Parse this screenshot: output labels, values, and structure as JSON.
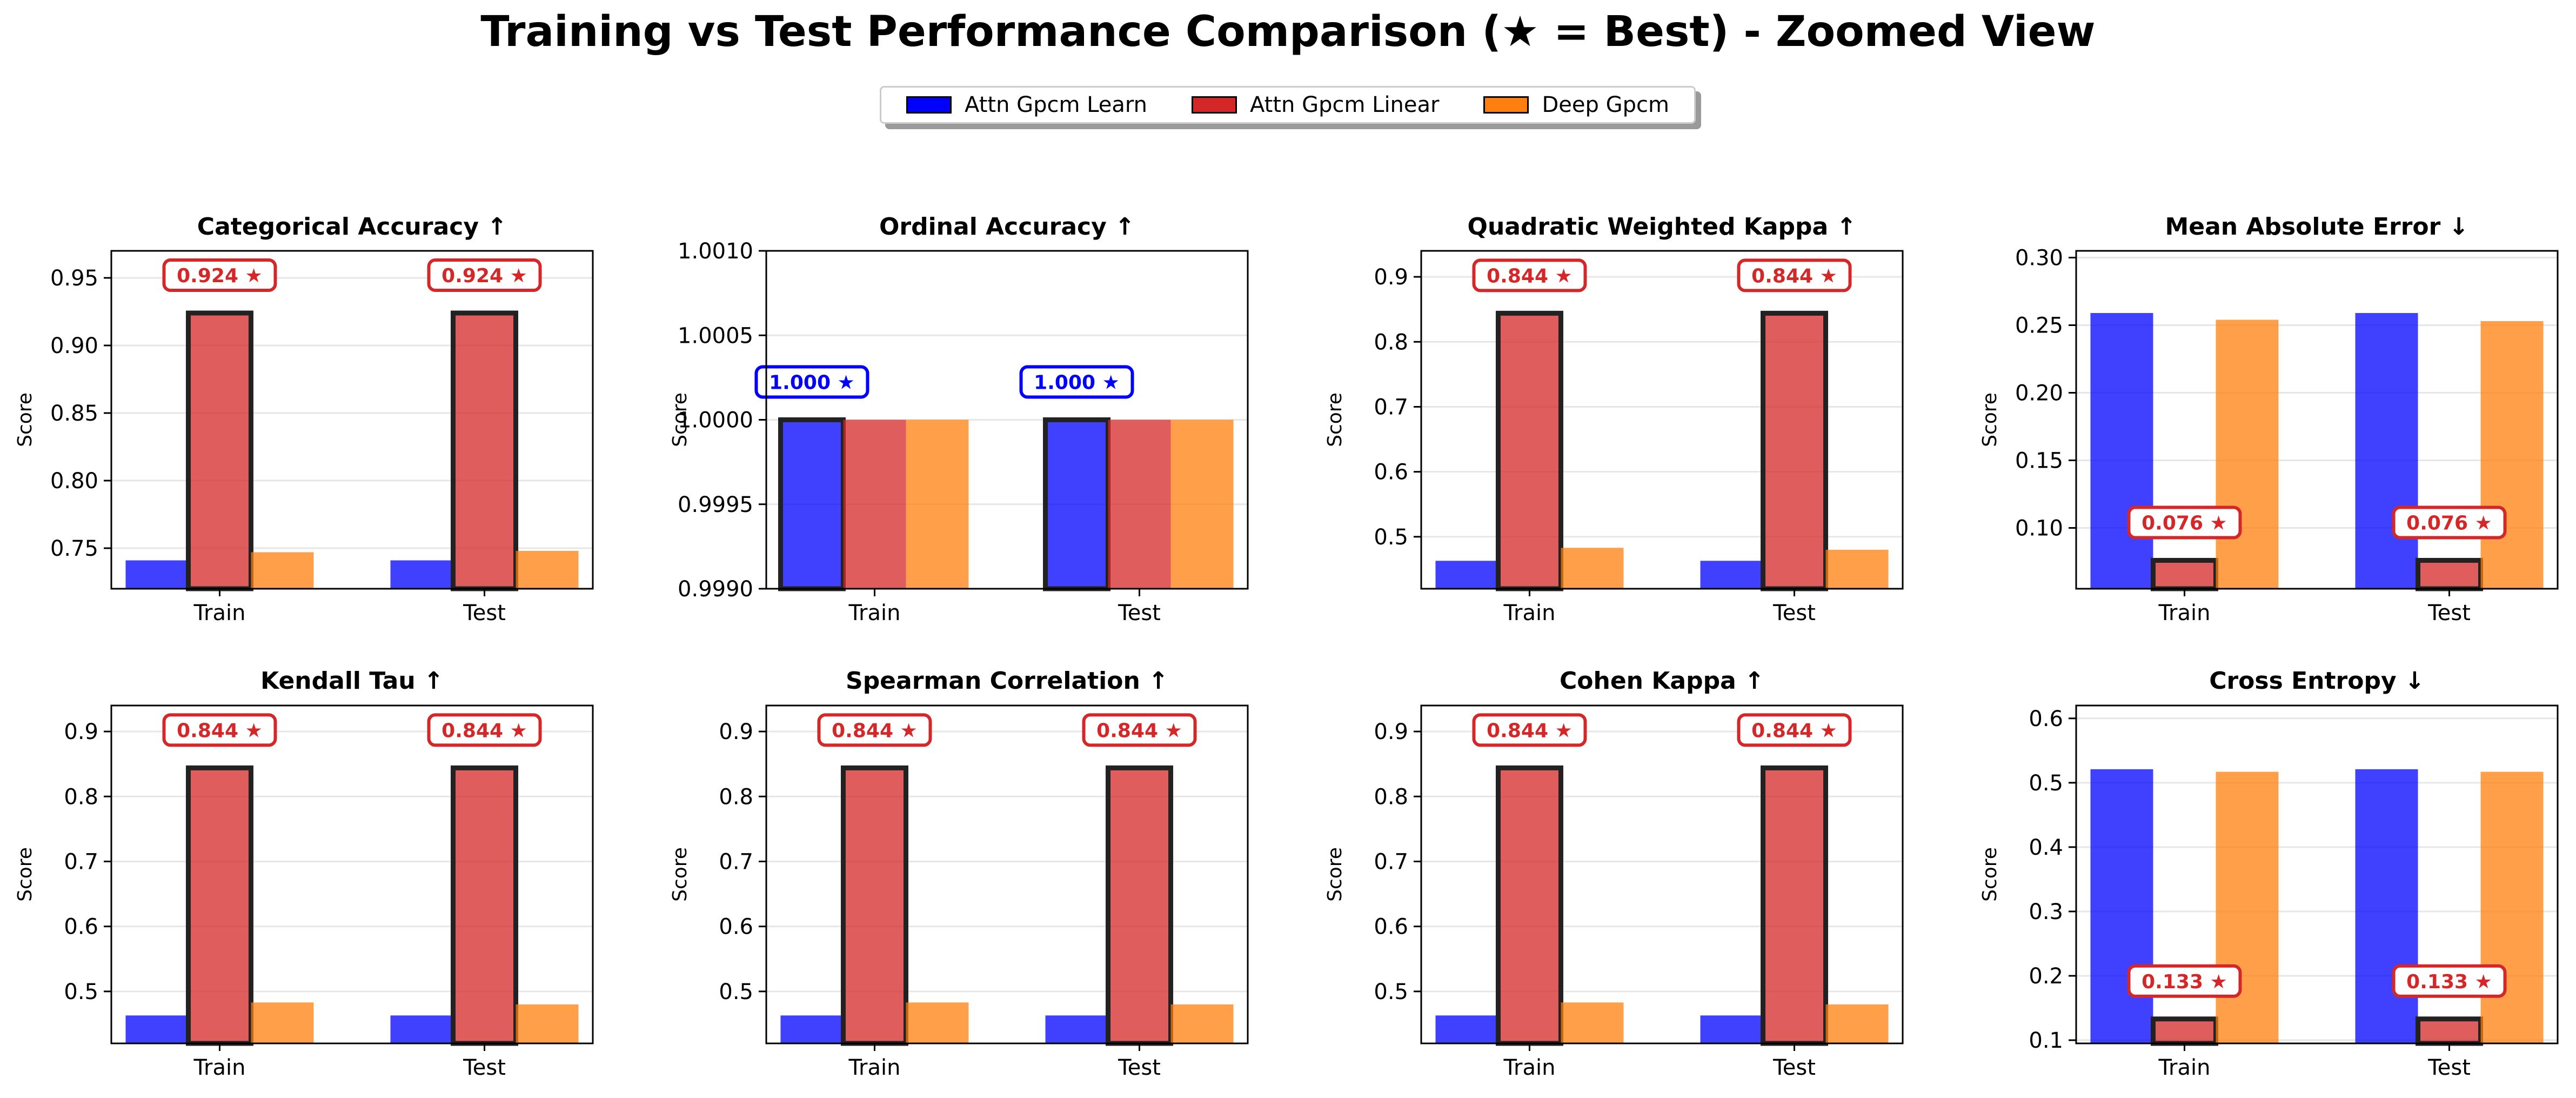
{
  "figure": {
    "title": "Training vs Test Performance Comparison (★ = Best) - Zoomed View"
  },
  "legend": {
    "items": [
      {
        "label": "Attn Gpcm Learn",
        "color": "#0000ff"
      },
      {
        "label": "Attn Gpcm Linear",
        "color": "#d62728"
      },
      {
        "label": "Deep Gpcm",
        "color": "#ff7f0e"
      }
    ]
  },
  "chart_data": [
    {
      "type": "bar",
      "title": "Categorical Accuracy ↑",
      "ylabel": "Score",
      "categories": [
        "Train",
        "Test"
      ],
      "ylim": [
        0.72,
        0.97
      ],
      "yticks": [
        0.75,
        0.8,
        0.85,
        0.9,
        0.95
      ],
      "ytick_labels": [
        "0.75",
        "0.80",
        "0.85",
        "0.90",
        "0.95"
      ],
      "series": [
        {
          "name": "Attn Gpcm Learn",
          "values": [
            0.741,
            0.741
          ]
        },
        {
          "name": "Attn Gpcm Linear",
          "values": [
            0.924,
            0.924
          ]
        },
        {
          "name": "Deep Gpcm",
          "values": [
            0.747,
            0.748
          ]
        }
      ],
      "best_series": 1,
      "best_labels": [
        "0.924 ★",
        "0.924 ★"
      ]
    },
    {
      "type": "bar",
      "title": "Ordinal Accuracy ↑",
      "ylabel": "Score",
      "categories": [
        "Train",
        "Test"
      ],
      "ylim": [
        0.999,
        1.001
      ],
      "yticks": [
        0.999,
        0.9995,
        1.0,
        1.0005,
        1.001
      ],
      "ytick_labels": [
        "0.9990",
        "0.9995",
        "1.0000",
        "1.0005",
        "1.0010"
      ],
      "series": [
        {
          "name": "Attn Gpcm Learn",
          "values": [
            1.0,
            1.0
          ]
        },
        {
          "name": "Attn Gpcm Linear",
          "values": [
            1.0,
            1.0
          ]
        },
        {
          "name": "Deep Gpcm",
          "values": [
            1.0,
            1.0
          ]
        }
      ],
      "best_series": 0,
      "best_labels": [
        "1.000 ★",
        "1.000 ★"
      ]
    },
    {
      "type": "bar",
      "title": "Quadratic Weighted Kappa ↑",
      "ylabel": "Score",
      "categories": [
        "Train",
        "Test"
      ],
      "ylim": [
        0.42,
        0.94
      ],
      "yticks": [
        0.5,
        0.6,
        0.7,
        0.8,
        0.9
      ],
      "ytick_labels": [
        "0.5",
        "0.6",
        "0.7",
        "0.8",
        "0.9"
      ],
      "series": [
        {
          "name": "Attn Gpcm Learn",
          "values": [
            0.463,
            0.463
          ]
        },
        {
          "name": "Attn Gpcm Linear",
          "values": [
            0.844,
            0.844
          ]
        },
        {
          "name": "Deep Gpcm",
          "values": [
            0.483,
            0.48
          ]
        }
      ],
      "best_series": 1,
      "best_labels": [
        "0.844 ★",
        "0.844 ★"
      ]
    },
    {
      "type": "bar",
      "title": "Mean Absolute Error ↓",
      "ylabel": "Score",
      "categories": [
        "Train",
        "Test"
      ],
      "ylim": [
        0.055,
        0.305
      ],
      "yticks": [
        0.1,
        0.15,
        0.2,
        0.25,
        0.3
      ],
      "ytick_labels": [
        "0.10",
        "0.15",
        "0.20",
        "0.25",
        "0.30"
      ],
      "series": [
        {
          "name": "Attn Gpcm Learn",
          "values": [
            0.259,
            0.259
          ]
        },
        {
          "name": "Attn Gpcm Linear",
          "values": [
            0.076,
            0.076
          ]
        },
        {
          "name": "Deep Gpcm",
          "values": [
            0.254,
            0.253
          ]
        }
      ],
      "best_series": 1,
      "best_labels": [
        "0.076 ★",
        "0.076 ★"
      ]
    },
    {
      "type": "bar",
      "title": "Kendall Tau ↑",
      "ylabel": "Score",
      "categories": [
        "Train",
        "Test"
      ],
      "ylim": [
        0.42,
        0.94
      ],
      "yticks": [
        0.5,
        0.6,
        0.7,
        0.8,
        0.9
      ],
      "ytick_labels": [
        "0.5",
        "0.6",
        "0.7",
        "0.8",
        "0.9"
      ],
      "series": [
        {
          "name": "Attn Gpcm Learn",
          "values": [
            0.463,
            0.463
          ]
        },
        {
          "name": "Attn Gpcm Linear",
          "values": [
            0.844,
            0.844
          ]
        },
        {
          "name": "Deep Gpcm",
          "values": [
            0.483,
            0.48
          ]
        }
      ],
      "best_series": 1,
      "best_labels": [
        "0.844 ★",
        "0.844 ★"
      ]
    },
    {
      "type": "bar",
      "title": "Spearman Correlation ↑",
      "ylabel": "Score",
      "categories": [
        "Train",
        "Test"
      ],
      "ylim": [
        0.42,
        0.94
      ],
      "yticks": [
        0.5,
        0.6,
        0.7,
        0.8,
        0.9
      ],
      "ytick_labels": [
        "0.5",
        "0.6",
        "0.7",
        "0.8",
        "0.9"
      ],
      "series": [
        {
          "name": "Attn Gpcm Learn",
          "values": [
            0.463,
            0.463
          ]
        },
        {
          "name": "Attn Gpcm Linear",
          "values": [
            0.844,
            0.844
          ]
        },
        {
          "name": "Deep Gpcm",
          "values": [
            0.483,
            0.48
          ]
        }
      ],
      "best_series": 1,
      "best_labels": [
        "0.844 ★",
        "0.844 ★"
      ]
    },
    {
      "type": "bar",
      "title": "Cohen Kappa ↑",
      "ylabel": "Score",
      "categories": [
        "Train",
        "Test"
      ],
      "ylim": [
        0.42,
        0.94
      ],
      "yticks": [
        0.5,
        0.6,
        0.7,
        0.8,
        0.9
      ],
      "ytick_labels": [
        "0.5",
        "0.6",
        "0.7",
        "0.8",
        "0.9"
      ],
      "series": [
        {
          "name": "Attn Gpcm Learn",
          "values": [
            0.463,
            0.463
          ]
        },
        {
          "name": "Attn Gpcm Linear",
          "values": [
            0.844,
            0.844
          ]
        },
        {
          "name": "Deep Gpcm",
          "values": [
            0.483,
            0.48
          ]
        }
      ],
      "best_series": 1,
      "best_labels": [
        "0.844 ★",
        "0.844 ★"
      ]
    },
    {
      "type": "bar",
      "title": "Cross Entropy ↓",
      "ylabel": "Score",
      "categories": [
        "Train",
        "Test"
      ],
      "ylim": [
        0.095,
        0.62
      ],
      "yticks": [
        0.1,
        0.2,
        0.3,
        0.4,
        0.5,
        0.6
      ],
      "ytick_labels": [
        "0.1",
        "0.2",
        "0.3",
        "0.4",
        "0.5",
        "0.6"
      ],
      "series": [
        {
          "name": "Attn Gpcm Learn",
          "values": [
            0.521,
            0.521
          ]
        },
        {
          "name": "Attn Gpcm Linear",
          "values": [
            0.133,
            0.133
          ]
        },
        {
          "name": "Deep Gpcm",
          "values": [
            0.517,
            0.517
          ]
        }
      ],
      "best_series": 1,
      "best_labels": [
        "0.133 ★",
        "0.133 ★"
      ]
    }
  ]
}
